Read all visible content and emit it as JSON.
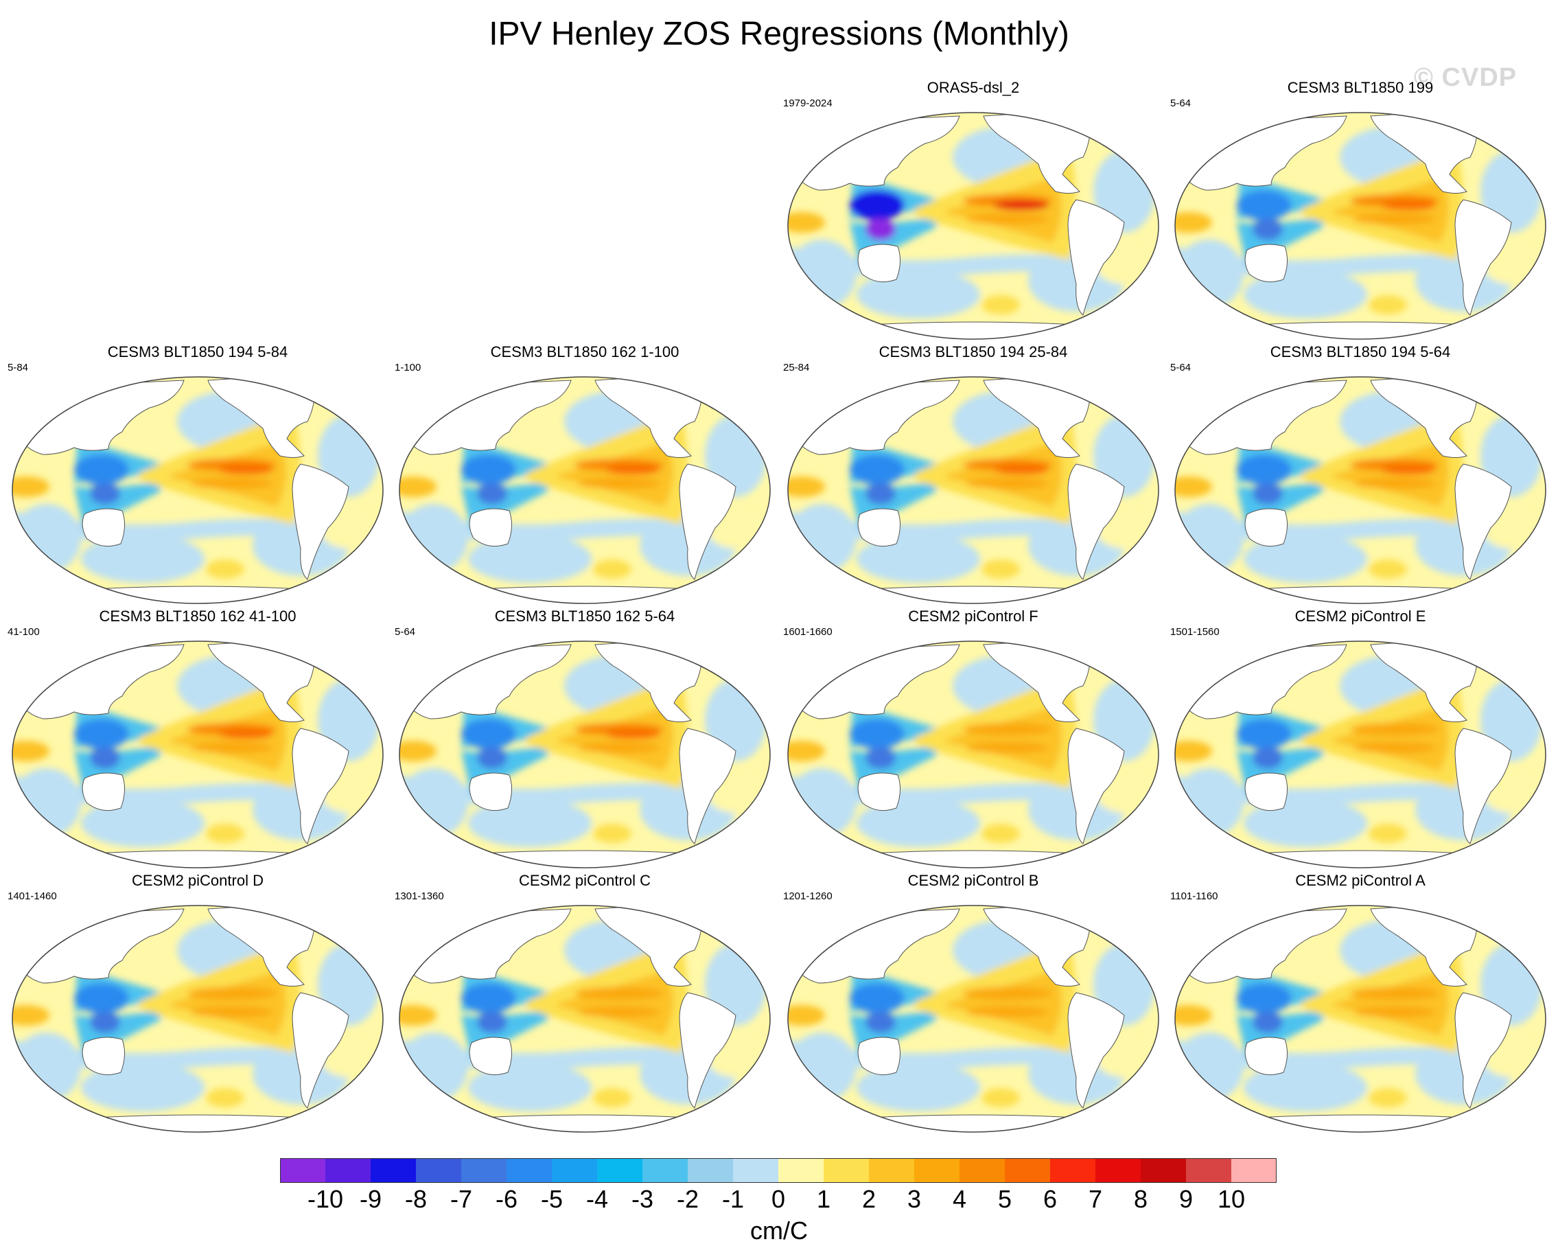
{
  "title": "IPV Henley ZOS Regressions (Monthly)",
  "watermark": "© CVDP",
  "panels": [
    {
      "title": "ORAS5-dsl_2",
      "period": "1979-2024",
      "intensity": 1.0,
      "west_deep": true
    },
    {
      "title": "CESM3 BLT1850 199",
      "period": "5-64",
      "intensity": 0.75,
      "west_deep": false
    },
    {
      "title": "CESM3 BLT1850 194 5-84",
      "period": "5-84",
      "intensity": 0.8,
      "west_deep": false
    },
    {
      "title": "CESM3 BLT1850 162 1-100",
      "period": "1-100",
      "intensity": 0.8,
      "west_deep": false
    },
    {
      "title": "CESM3 BLT1850 194 25-84",
      "period": "25-84",
      "intensity": 0.85,
      "west_deep": false
    },
    {
      "title": "CESM3 BLT1850 194 5-64",
      "period": "5-64",
      "intensity": 0.8,
      "west_deep": false
    },
    {
      "title": "CESM3 BLT1850 162 41-100",
      "period": "41-100",
      "intensity": 0.8,
      "west_deep": false
    },
    {
      "title": "CESM3 BLT1850 162 5-64",
      "period": "5-64",
      "intensity": 0.85,
      "west_deep": false
    },
    {
      "title": "CESM2 piControl F",
      "period": "1601-1660",
      "intensity": 0.6,
      "west_deep": false
    },
    {
      "title": "CESM2 piControl E",
      "period": "1501-1560",
      "intensity": 0.6,
      "west_deep": false
    },
    {
      "title": "CESM2 piControl D",
      "period": "1401-1460",
      "intensity": 0.6,
      "west_deep": false
    },
    {
      "title": "CESM2 piControl C",
      "period": "1301-1360",
      "intensity": 0.65,
      "west_deep": false
    },
    {
      "title": "CESM2 piControl B",
      "period": "1201-1260",
      "intensity": 0.6,
      "west_deep": false
    },
    {
      "title": "CESM2 piControl A",
      "period": "1101-1160",
      "intensity": 0.6,
      "west_deep": false
    }
  ],
  "colorbar": {
    "colors": [
      "#8a2be2",
      "#5a1fe0",
      "#1414e6",
      "#3a5ade",
      "#3f78e0",
      "#2a8af0",
      "#1aa0f0",
      "#0ab8f0",
      "#4ec2ee",
      "#98cfec",
      "#bde0f4",
      "#fff8a8",
      "#fde050",
      "#fcc226",
      "#fba80c",
      "#f98a04",
      "#f96a04",
      "#fa2a0c",
      "#e60c0c",
      "#c80a0a",
      "#d84444",
      "#ffb0b0"
    ],
    "labels": [
      "-10",
      "-9",
      "-8",
      "-7",
      "-6",
      "-5",
      "-4",
      "-3",
      "-2",
      "-1",
      "0",
      "1",
      "2",
      "3",
      "4",
      "5",
      "6",
      "7",
      "8",
      "9",
      "10"
    ],
    "units": "cm/C"
  }
}
